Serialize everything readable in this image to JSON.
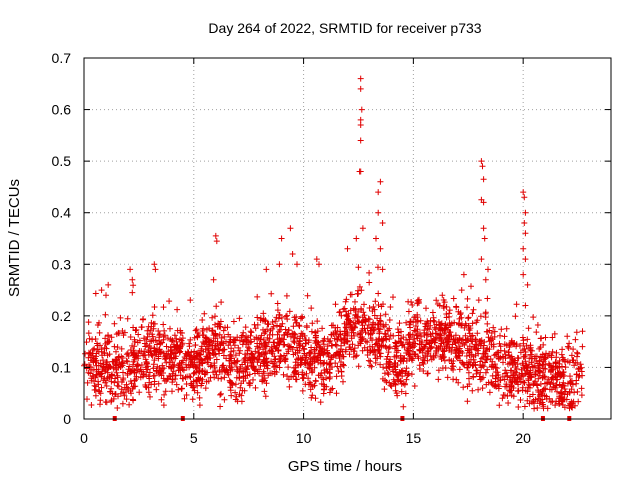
{
  "chart_data": {
    "type": "scatter",
    "title": "Day 264 of 2022, SRMTID for receiver p733",
    "xlabel": "GPS time / hours",
    "ylabel": "SRMTID / TECUs",
    "xlim": [
      0,
      24
    ],
    "ylim": [
      0,
      0.7
    ],
    "xticks": [
      0,
      5,
      10,
      15,
      20
    ],
    "yticks": [
      0,
      0.1,
      0.2,
      0.3,
      0.4,
      0.5,
      0.6,
      0.7
    ],
    "xtick_labels": [
      "0",
      "5",
      "10",
      "15",
      "20"
    ],
    "ytick_labels": [
      "0",
      "0.1",
      "0.2",
      "0.3",
      "0.4",
      "0.5",
      "0.6",
      "0.7"
    ],
    "grid": true,
    "marker": "plus",
    "color": "#e00000",
    "seed": 264,
    "point_count": 2600,
    "background_profile": [
      [
        0.0,
        0.12
      ],
      [
        0.5,
        0.1
      ],
      [
        1.0,
        0.1
      ],
      [
        1.5,
        0.09
      ],
      [
        2.0,
        0.1
      ],
      [
        2.5,
        0.12
      ],
      [
        3.0,
        0.13
      ],
      [
        3.5,
        0.12
      ],
      [
        4.0,
        0.11
      ],
      [
        4.5,
        0.11
      ],
      [
        5.0,
        0.11
      ],
      [
        5.5,
        0.12
      ],
      [
        6.0,
        0.13
      ],
      [
        6.5,
        0.11
      ],
      [
        7.0,
        0.1
      ],
      [
        7.5,
        0.12
      ],
      [
        8.0,
        0.13
      ],
      [
        8.5,
        0.13
      ],
      [
        9.0,
        0.15
      ],
      [
        9.5,
        0.14
      ],
      [
        10.0,
        0.13
      ],
      [
        10.5,
        0.11
      ],
      [
        11.0,
        0.1
      ],
      [
        11.5,
        0.13
      ],
      [
        12.0,
        0.16
      ],
      [
        12.5,
        0.18
      ],
      [
        13.0,
        0.17
      ],
      [
        13.5,
        0.15
      ],
      [
        14.0,
        0.11
      ],
      [
        14.5,
        0.1
      ],
      [
        15.0,
        0.15
      ],
      [
        15.5,
        0.16
      ],
      [
        16.0,
        0.15
      ],
      [
        16.5,
        0.16
      ],
      [
        17.0,
        0.15
      ],
      [
        17.5,
        0.13
      ],
      [
        18.0,
        0.13
      ],
      [
        18.5,
        0.12
      ],
      [
        19.0,
        0.1
      ],
      [
        19.5,
        0.09
      ],
      [
        20.0,
        0.09
      ],
      [
        20.5,
        0.09
      ],
      [
        21.0,
        0.08
      ],
      [
        21.5,
        0.08
      ],
      [
        22.0,
        0.07
      ],
      [
        22.7,
        0.09
      ]
    ],
    "spikes": [
      {
        "x": 0.8,
        "y": 0.25
      },
      {
        "x": 1.0,
        "y": 0.24
      },
      {
        "x": 1.1,
        "y": 0.26
      },
      {
        "x": 2.1,
        "y": 0.29
      },
      {
        "x": 2.2,
        "y": 0.27
      },
      {
        "x": 2.2,
        "y": 0.245
      },
      {
        "x": 3.2,
        "y": 0.3
      },
      {
        "x": 3.25,
        "y": 0.29
      },
      {
        "x": 6.0,
        "y": 0.355
      },
      {
        "x": 6.05,
        "y": 0.345
      },
      {
        "x": 5.9,
        "y": 0.27
      },
      {
        "x": 8.3,
        "y": 0.29
      },
      {
        "x": 8.9,
        "y": 0.3
      },
      {
        "x": 9.0,
        "y": 0.35
      },
      {
        "x": 9.4,
        "y": 0.37
      },
      {
        "x": 9.5,
        "y": 0.32
      },
      {
        "x": 9.7,
        "y": 0.3
      },
      {
        "x": 10.6,
        "y": 0.31
      },
      {
        "x": 10.7,
        "y": 0.3
      },
      {
        "x": 12.0,
        "y": 0.33
      },
      {
        "x": 12.4,
        "y": 0.35
      },
      {
        "x": 12.6,
        "y": 0.66
      },
      {
        "x": 12.6,
        "y": 0.64
      },
      {
        "x": 12.65,
        "y": 0.6
      },
      {
        "x": 12.6,
        "y": 0.58
      },
      {
        "x": 12.6,
        "y": 0.57
      },
      {
        "x": 12.6,
        "y": 0.54
      },
      {
        "x": 12.55,
        "y": 0.48
      },
      {
        "x": 12.6,
        "y": 0.48
      },
      {
        "x": 12.7,
        "y": 0.37
      },
      {
        "x": 13.4,
        "y": 0.44
      },
      {
        "x": 13.5,
        "y": 0.46
      },
      {
        "x": 13.4,
        "y": 0.4
      },
      {
        "x": 13.3,
        "y": 0.35
      },
      {
        "x": 13.6,
        "y": 0.38
      },
      {
        "x": 13.5,
        "y": 0.33
      },
      {
        "x": 13.6,
        "y": 0.29
      },
      {
        "x": 15.2,
        "y": 0.23
      },
      {
        "x": 16.2,
        "y": 0.22
      },
      {
        "x": 17.2,
        "y": 0.25
      },
      {
        "x": 17.3,
        "y": 0.28
      },
      {
        "x": 18.1,
        "y": 0.5
      },
      {
        "x": 18.15,
        "y": 0.49
      },
      {
        "x": 18.2,
        "y": 0.465
      },
      {
        "x": 18.1,
        "y": 0.425
      },
      {
        "x": 18.2,
        "y": 0.42
      },
      {
        "x": 18.2,
        "y": 0.37
      },
      {
        "x": 18.25,
        "y": 0.35
      },
      {
        "x": 18.1,
        "y": 0.31
      },
      {
        "x": 18.4,
        "y": 0.29
      },
      {
        "x": 18.3,
        "y": 0.27
      },
      {
        "x": 20.0,
        "y": 0.44
      },
      {
        "x": 20.05,
        "y": 0.43
      },
      {
        "x": 20.1,
        "y": 0.4
      },
      {
        "x": 20.05,
        "y": 0.38
      },
      {
        "x": 20.1,
        "y": 0.36
      },
      {
        "x": 20.0,
        "y": 0.33
      },
      {
        "x": 20.1,
        "y": 0.31
      },
      {
        "x": 20.0,
        "y": 0.28
      },
      {
        "x": 20.2,
        "y": 0.26
      },
      {
        "x": 20.1,
        "y": 0.22
      },
      {
        "x": 22.7,
        "y": 0.17
      }
    ],
    "zero_markers": [
      1.4,
      4.5,
      14.5,
      20.9,
      22.1
    ]
  }
}
